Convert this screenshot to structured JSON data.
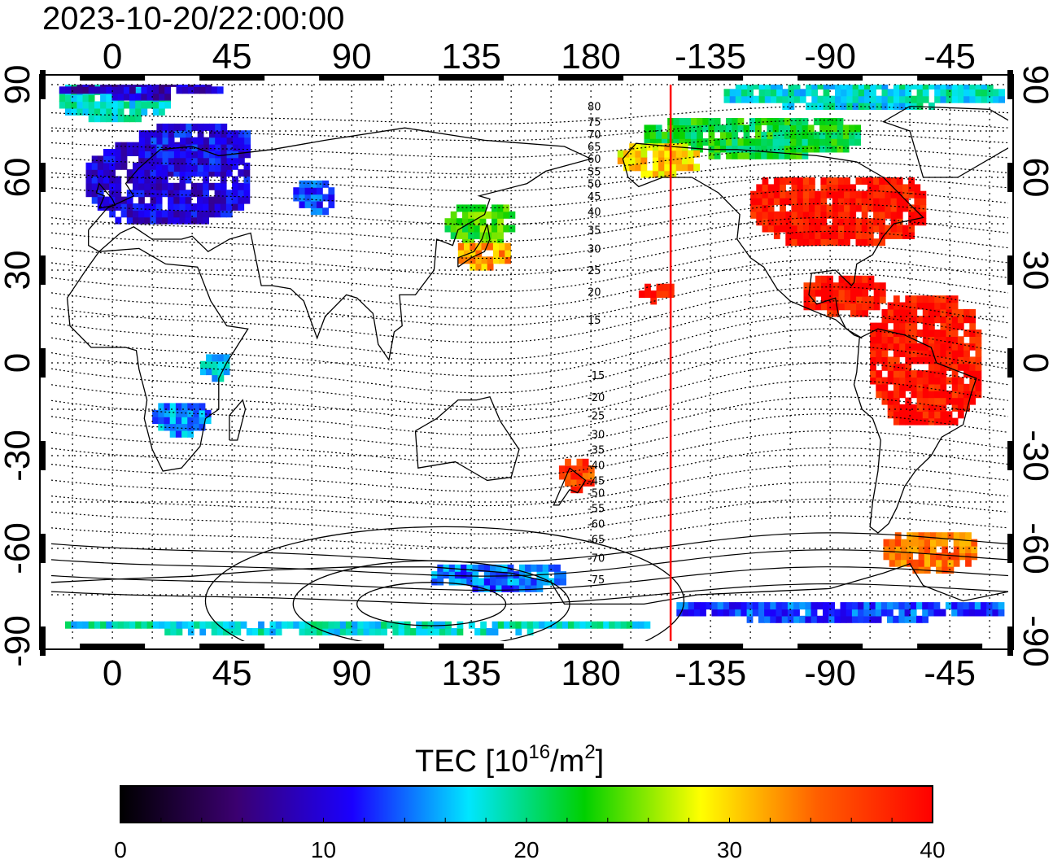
{
  "title": "2023-10-20/22:00:00",
  "map": {
    "lon_min": -23,
    "lon_max": 337,
    "lat_min": -90,
    "lat_max": 90,
    "grid": true,
    "top_lon_labels": [
      "0",
      "45",
      "90",
      "135",
      "180",
      "-135",
      "-90",
      "-45"
    ],
    "bottom_lon_labels": [
      "0",
      "45",
      "90",
      "135",
      "180",
      "-135",
      "-90",
      "-45"
    ],
    "lon_label_values": [
      0,
      45,
      90,
      135,
      180,
      225,
      270,
      315
    ],
    "left_lat_labels": [
      "90",
      "60",
      "30",
      "0",
      "-30",
      "-60",
      "-90"
    ],
    "right_lat_labels": [
      "90",
      "60",
      "30",
      "0",
      "-30",
      "-60",
      "-90"
    ],
    "lat_label_values": [
      90,
      60,
      30,
      0,
      -30,
      -60,
      -90
    ],
    "terminator_lon": 210,
    "terminator_color": "#ff0000"
  },
  "contour_labels": [
    {
      "text": "80",
      "lat": 83
    },
    {
      "text": "75",
      "lat": 78
    },
    {
      "text": "70",
      "lat": 74
    },
    {
      "text": "65",
      "lat": 70
    },
    {
      "text": "60",
      "lat": 66
    },
    {
      "text": "55",
      "lat": 62
    },
    {
      "text": "50",
      "lat": 58
    },
    {
      "text": "45",
      "lat": 54
    },
    {
      "text": "40",
      "lat": 49
    },
    {
      "text": "35",
      "lat": 43
    },
    {
      "text": "30",
      "lat": 37
    },
    {
      "text": "25",
      "lat": 30
    },
    {
      "text": "20",
      "lat": 23
    },
    {
      "text": "15",
      "lat": 14
    },
    {
      "text": "-15",
      "lat": -4
    },
    {
      "text": "-20",
      "lat": -11
    },
    {
      "text": "-25",
      "lat": -17
    },
    {
      "text": "-30",
      "lat": -23
    },
    {
      "text": "-35",
      "lat": -28
    },
    {
      "text": "-40",
      "lat": -33
    },
    {
      "text": "-45",
      "lat": -38
    },
    {
      "text": "-50",
      "lat": -42
    },
    {
      "text": "-55",
      "lat": -47
    },
    {
      "text": "-60",
      "lat": -52
    },
    {
      "text": "-65",
      "lat": -57
    },
    {
      "text": "-70",
      "lat": -63
    },
    {
      "text": "-75",
      "lat": -70
    }
  ],
  "colorbar": {
    "label_main": "TEC  [10",
    "label_sup1": "16",
    "label_mid": "/m",
    "label_sup2": "2",
    "label_end": "]",
    "min": 0,
    "max": 40,
    "ticks": [
      "0",
      "10",
      "20",
      "30",
      "40"
    ],
    "tick_values": [
      0,
      10,
      20,
      30,
      40
    ],
    "colors": [
      "#000000",
      "#3b0070",
      "#1a00ff",
      "#00e6ff",
      "#00d000",
      "#ffff00",
      "#ff6000",
      "#ff0000"
    ]
  },
  "tec_regions": [
    {
      "name": "arctic-greenland-atlantic",
      "lon": -20,
      "lat": 78,
      "w": 40,
      "h": 14,
      "tec": 18
    },
    {
      "name": "arctic-top-left",
      "lon": -20,
      "lat": 85,
      "w": 60,
      "h": 5,
      "tec": 9
    },
    {
      "name": "europe",
      "lon": -10,
      "lat": 45,
      "w": 60,
      "h": 25,
      "tec": 10
    },
    {
      "name": "scandinavia",
      "lon": 10,
      "lat": 62,
      "w": 40,
      "h": 14,
      "tec": 11
    },
    {
      "name": "central-asia-patch",
      "lon": 68,
      "lat": 48,
      "w": 14,
      "h": 10,
      "tec": 13
    },
    {
      "name": "south-africa",
      "lon": 15,
      "lat": -24,
      "w": 20,
      "h": 10,
      "tec": 15
    },
    {
      "name": "east-africa",
      "lon": 33,
      "lat": -6,
      "w": 10,
      "h": 8,
      "tec": 17
    },
    {
      "name": "japan-east-asia",
      "lon": 125,
      "lat": 38,
      "w": 25,
      "h": 12,
      "tec": 24
    },
    {
      "name": "japan-south",
      "lon": 130,
      "lat": 30,
      "w": 18,
      "h": 8,
      "tec": 32
    },
    {
      "name": "new-zealand",
      "lon": 168,
      "lat": -42,
      "w": 12,
      "h": 10,
      "tec": 36
    },
    {
      "name": "antarctic-coast",
      "lon": 120,
      "lat": -74,
      "w": 50,
      "h": 8,
      "tec": 14
    },
    {
      "name": "antarctic-bottom",
      "lon": -20,
      "lat": -88,
      "w": 220,
      "h": 3,
      "tec": 18
    },
    {
      "name": "north-america",
      "lon": 240,
      "lat": 38,
      "w": 65,
      "h": 22,
      "tec": 39
    },
    {
      "name": "central-america",
      "lon": 260,
      "lat": 15,
      "w": 30,
      "h": 12,
      "tec": 39
    },
    {
      "name": "south-america",
      "lon": 285,
      "lat": -20,
      "w": 40,
      "h": 40,
      "tec": 39
    },
    {
      "name": "canada",
      "lon": 200,
      "lat": 66,
      "w": 80,
      "h": 12,
      "tec": 22
    },
    {
      "name": "canada-arctic",
      "lon": 230,
      "lat": 82,
      "w": 105,
      "h": 8,
      "tec": 18
    },
    {
      "name": "alaska",
      "lon": 190,
      "lat": 60,
      "w": 30,
      "h": 10,
      "tec": 30
    },
    {
      "name": "hawaii",
      "lon": 198,
      "lat": 19,
      "w": 12,
      "h": 6,
      "tec": 39
    },
    {
      "name": "patagonia",
      "lon": 290,
      "lat": -68,
      "w": 35,
      "h": 12,
      "tec": 34
    },
    {
      "name": "antarctic-right",
      "lon": 210,
      "lat": -84,
      "w": 125,
      "h": 6,
      "tec": 13
    }
  ]
}
